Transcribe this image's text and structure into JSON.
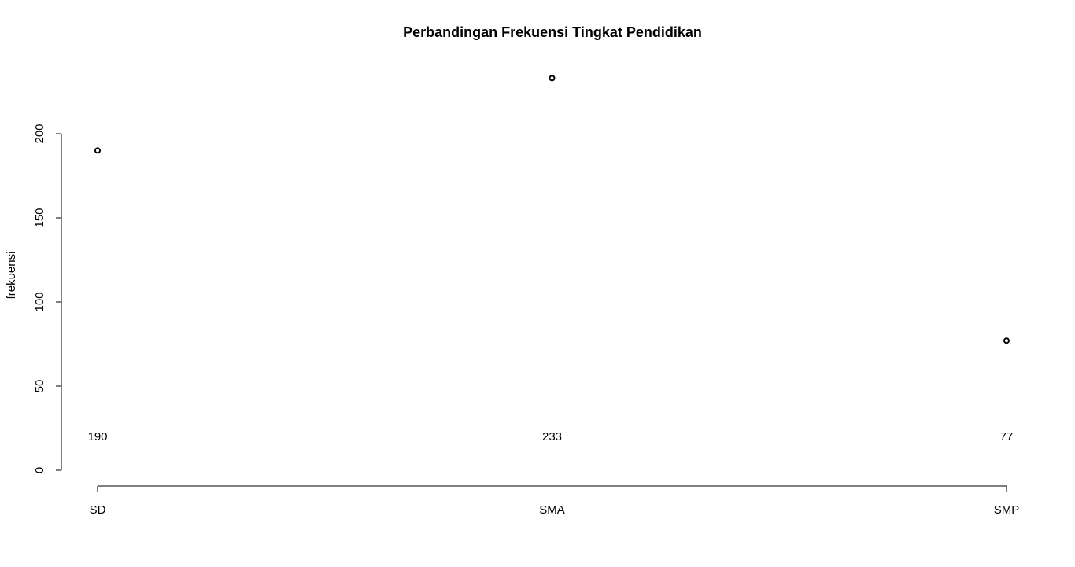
{
  "chart_data": {
    "type": "scatter",
    "title": "Perbandingan Frekuensi Tingkat Pendidikan",
    "xlabel": "",
    "ylabel": "frekuensi",
    "categories": [
      "SD",
      "SMA",
      "SMP"
    ],
    "values": [
      190,
      233,
      77
    ],
    "data_labels": [
      "190",
      "233",
      "77"
    ],
    "data_label_y": 20,
    "ylim": [
      0,
      233
    ],
    "y_ticks": [
      0,
      50,
      100,
      150,
      200
    ],
    "y_tick_labels": [
      "0",
      "50",
      "100",
      "150",
      "200"
    ],
    "grid": false,
    "legend": "none",
    "marker": "open-circle",
    "colors": {
      "marker": "#000000",
      "axis": "#000000",
      "background": "#ffffff"
    }
  }
}
